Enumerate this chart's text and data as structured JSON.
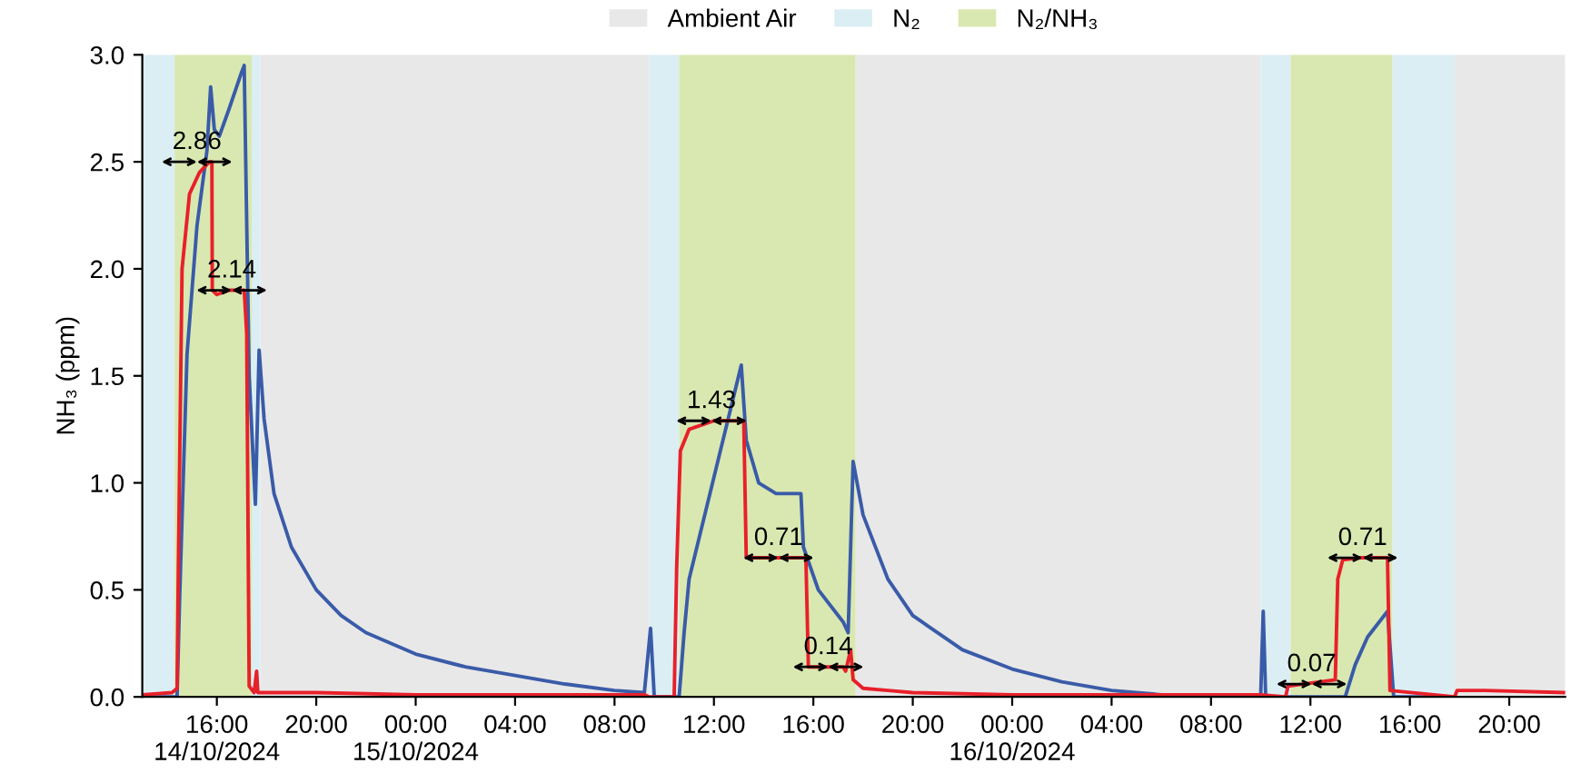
{
  "chart_data": {
    "type": "line",
    "ylabel": "NH₃ (ppm)",
    "xlim": [
      "2024-10-14T13:00",
      "2024-10-16T22:15"
    ],
    "ylim": [
      0,
      3.0
    ],
    "xticks": [
      {
        "value": "2024-10-14T16:00",
        "label": "16:00\n14/10/2024"
      },
      {
        "value": "2024-10-14T20:00",
        "label": "20:00"
      },
      {
        "value": "2024-10-15T00:00",
        "label": "00:00\n15/10/2024"
      },
      {
        "value": "2024-10-15T04:00",
        "label": "04:00"
      },
      {
        "value": "2024-10-15T08:00",
        "label": "08:00"
      },
      {
        "value": "2024-10-15T12:00",
        "label": "12:00"
      },
      {
        "value": "2024-10-15T16:00",
        "label": "16:00"
      },
      {
        "value": "2024-10-15T20:00",
        "label": "20:00"
      },
      {
        "value": "2024-10-16T00:00",
        "label": "00:00\n16/10/2024"
      },
      {
        "value": "2024-10-16T04:00",
        "label": "04:00"
      },
      {
        "value": "2024-10-16T08:00",
        "label": "08:00"
      },
      {
        "value": "2024-10-16T12:00",
        "label": "12:00"
      },
      {
        "value": "2024-10-16T16:00",
        "label": "16:00"
      },
      {
        "value": "2024-10-16T20:00",
        "label": "20:00"
      }
    ],
    "yticks": [
      {
        "value": 0,
        "label": "0.0"
      },
      0.5,
      {
        "value": 1,
        "label": "1.0"
      },
      1.5,
      {
        "value": 2,
        "label": "2.0"
      },
      2.5,
      {
        "value": 3,
        "label": "3.0"
      }
    ],
    "grid": false,
    "legend": "top",
    "marker": "none",
    "line_style": "solid",
    "bands": [
      {
        "axis": "x",
        "from": "2024-10-14T17:45",
        "to": "2024-10-15T09:24",
        "label": "Ambient Air",
        "color": "#e8e8e8"
      },
      {
        "axis": "x",
        "from": "2024-10-15T17:42",
        "to": "2024-10-16T10:00",
        "color": "#e8e8e8"
      },
      {
        "axis": "x",
        "from": "2024-10-16T17:48",
        "to": "2024-10-16T22:15",
        "color": "#e8e8e8"
      },
      {
        "axis": "x",
        "from": "2024-10-14T13:00",
        "to": "2024-10-14T14:18",
        "label": "N₂",
        "color": "#dbeef4"
      },
      {
        "axis": "x",
        "from": "2024-10-14T17:24",
        "to": "2024-10-14T17:45",
        "color": "#dbeef4"
      },
      {
        "axis": "x",
        "from": "2024-10-15T09:24",
        "to": "2024-10-15T10:36",
        "color": "#dbeef4"
      },
      {
        "axis": "x",
        "from": "2024-10-16T10:00",
        "to": "2024-10-16T11:12",
        "color": "#dbeef4"
      },
      {
        "axis": "x",
        "from": "2024-10-16T15:18",
        "to": "2024-10-16T17:48",
        "color": "#dbeef4"
      },
      {
        "axis": "x",
        "from": "2024-10-14T14:18",
        "to": "2024-10-14T17:24",
        "label": "N₂/NH₃",
        "color": "#d9e8b0"
      },
      {
        "axis": "x",
        "from": "2024-10-15T10:36",
        "to": "2024-10-15T17:42",
        "color": "#d9e8b0"
      },
      {
        "axis": "x",
        "from": "2024-10-16T11:12",
        "to": "2024-10-16T15:18",
        "color": "#d9e8b0"
      }
    ],
    "series": [
      {
        "color": "#3a5ba8",
        "x": [
          "2024-10-14T13:00",
          "2024-10-14T14:24",
          "2024-10-14T14:30",
          "2024-10-14T14:48",
          "2024-10-14T15:12",
          "2024-10-14T15:36",
          "2024-10-14T15:45",
          "2024-10-14T15:54",
          "2024-10-14T16:06",
          "2024-10-14T16:30",
          "2024-10-14T17:00",
          "2024-10-14T17:06",
          "2024-10-14T17:18",
          "2024-10-14T17:33",
          "2024-10-14T17:42",
          "2024-10-14T17:54",
          "2024-10-14T18:18",
          "2024-10-14T19:00",
          "2024-10-14T20:00",
          "2024-10-14T21:00",
          "2024-10-14T22:00",
          "2024-10-15T00:00",
          "2024-10-15T02:00",
          "2024-10-15T04:00",
          "2024-10-15T06:00",
          "2024-10-15T08:00",
          "2024-10-15T09:12",
          "2024-10-15T09:27",
          "2024-10-15T09:36",
          "2024-10-15T10:36",
          "2024-10-15T10:48",
          "2024-10-15T11:00",
          "2024-10-15T13:06",
          "2024-10-15T13:18",
          "2024-10-15T13:48",
          "2024-10-15T14:30",
          "2024-10-15T15:30",
          "2024-10-15T15:36",
          "2024-10-15T16:12",
          "2024-10-15T17:12",
          "2024-10-15T17:24",
          "2024-10-15T17:36",
          "2024-10-15T18:00",
          "2024-10-15T19:00",
          "2024-10-15T20:00",
          "2024-10-15T22:00",
          "2024-10-16T00:00",
          "2024-10-16T02:00",
          "2024-10-16T04:00",
          "2024-10-16T06:00",
          "2024-10-16T10:00",
          "2024-10-16T10:06",
          "2024-10-16T10:12",
          "2024-10-16T13:24",
          "2024-10-16T13:48",
          "2024-10-16T14:18",
          "2024-10-16T15:06",
          "2024-10-16T15:21",
          "2024-10-16T17:48"
        ],
        "values": [
          0.0,
          0.0,
          0.45,
          1.6,
          2.2,
          2.55,
          2.85,
          2.65,
          2.62,
          2.75,
          2.92,
          2.95,
          1.5,
          0.9,
          1.62,
          1.3,
          0.95,
          0.7,
          0.5,
          0.38,
          0.3,
          0.2,
          0.14,
          0.1,
          0.06,
          0.03,
          0.02,
          0.32,
          0.0,
          0.0,
          0.3,
          0.55,
          1.55,
          1.2,
          1.0,
          0.95,
          0.95,
          0.7,
          0.5,
          0.35,
          0.3,
          1.1,
          0.85,
          0.55,
          0.38,
          0.22,
          0.13,
          0.07,
          0.03,
          0.01,
          0.01,
          0.4,
          0.0,
          0.0,
          0.15,
          0.28,
          0.4,
          0.0,
          0.0
        ]
      },
      {
        "color": "#e8202a",
        "x": [
          "2024-10-14T13:00",
          "2024-10-14T14:12",
          "2024-10-14T14:24",
          "2024-10-14T14:27",
          "2024-10-14T14:36",
          "2024-10-14T14:54",
          "2024-10-14T15:18",
          "2024-10-14T15:42",
          "2024-10-14T15:48",
          "2024-10-14T15:49",
          "2024-10-14T16:00",
          "2024-10-14T16:30",
          "2024-10-14T17:06",
          "2024-10-14T17:12",
          "2024-10-14T17:18",
          "2024-10-14T17:30",
          "2024-10-14T17:36",
          "2024-10-14T17:39",
          "2024-10-14T20:00",
          "2024-10-15T00:00",
          "2024-10-15T09:12",
          "2024-10-15T09:24",
          "2024-10-15T10:24",
          "2024-10-15T10:30",
          "2024-10-15T10:39",
          "2024-10-15T11:00",
          "2024-10-15T12:00",
          "2024-10-15T13:12",
          "2024-10-15T13:18",
          "2024-10-15T14:00",
          "2024-10-15T15:42",
          "2024-10-15T15:48",
          "2024-10-15T17:12",
          "2024-10-15T17:18",
          "2024-10-15T17:30",
          "2024-10-15T17:36",
          "2024-10-15T18:00",
          "2024-10-15T19:00",
          "2024-10-15T20:00",
          "2024-10-16T00:00",
          "2024-10-16T10:00",
          "2024-10-16T11:00",
          "2024-10-16T11:06",
          "2024-10-16T13:00",
          "2024-10-16T13:06",
          "2024-10-16T13:18",
          "2024-10-16T14:00",
          "2024-10-16T15:06",
          "2024-10-16T15:12",
          "2024-10-16T17:48",
          "2024-10-16T17:54",
          "2024-10-16T19:00",
          "2024-10-16T22:15"
        ],
        "values": [
          0.01,
          0.02,
          0.04,
          0.6,
          2.0,
          2.35,
          2.45,
          2.5,
          2.5,
          1.9,
          1.88,
          1.9,
          1.9,
          1.7,
          0.05,
          0.02,
          0.12,
          0.02,
          0.02,
          0.01,
          0.01,
          0.0,
          0.0,
          0.6,
          1.15,
          1.25,
          1.29,
          1.29,
          0.65,
          0.65,
          0.65,
          0.14,
          0.14,
          0.12,
          0.22,
          0.08,
          0.04,
          0.03,
          0.02,
          0.01,
          0.01,
          0.0,
          0.05,
          0.08,
          0.55,
          0.64,
          0.65,
          0.65,
          0.03,
          0.0,
          0.03,
          0.03,
          0.02
        ]
      }
    ],
    "annotations": [
      {
        "text": "2.86",
        "x": "2024-10-14T15:12",
        "y": 2.5
      },
      {
        "text": "2.14",
        "x": "2024-10-14T16:36",
        "y": 1.9
      },
      {
        "text": "1.43",
        "x": "2024-10-15T11:54",
        "y": 1.29
      },
      {
        "text": "0.71",
        "x": "2024-10-15T14:36",
        "y": 0.65
      },
      {
        "text": "0.14",
        "x": "2024-10-15T16:36",
        "y": 0.14
      },
      {
        "text": "0.07",
        "x": "2024-10-16T12:03",
        "y": 0.06
      },
      {
        "text": "0.71",
        "x": "2024-10-16T14:06",
        "y": 0.65
      }
    ]
  }
}
